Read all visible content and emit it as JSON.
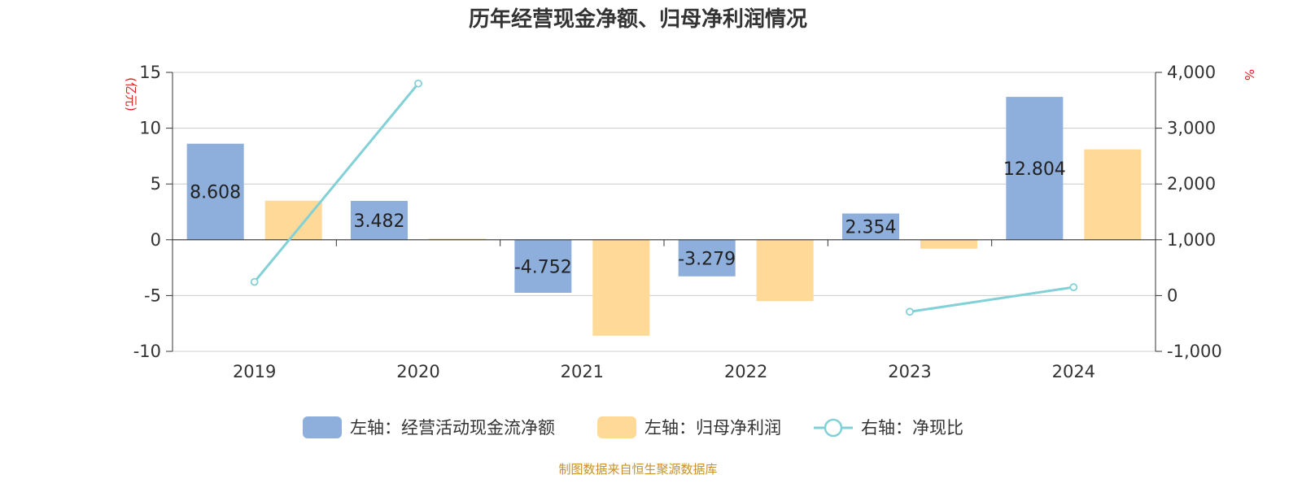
{
  "chart_data": {
    "type": "bar",
    "title": "历年经营现金净额、归母净利润情况",
    "categories": [
      "2019",
      "2020",
      "2021",
      "2022",
      "2023",
      "2024"
    ],
    "left_axis": {
      "unit": "(亿元)",
      "ylim": [
        -10,
        15
      ],
      "ticks": [
        "15",
        "10",
        "5",
        "0",
        "-5",
        "-10"
      ],
      "tick_values": [
        15,
        10,
        5,
        0,
        -5,
        -10
      ]
    },
    "right_axis": {
      "unit": "%",
      "ylim": [
        -1000,
        4000
      ],
      "ticks": [
        "4,000",
        "3,000",
        "2,000",
        "1,000",
        "0",
        "-1,000"
      ],
      "tick_values": [
        4000,
        3000,
        2000,
        1000,
        0,
        -1000
      ]
    },
    "series": [
      {
        "name": "左轴：经营活动现金流净额",
        "axis": "left",
        "kind": "bar",
        "color": "#8eaedb",
        "values": [
          8.608,
          3.482,
          -4.752,
          -3.279,
          2.354,
          12.804
        ],
        "labels": [
          "8.608",
          "3.482",
          "-4.752",
          "-3.279",
          "2.354",
          "12.804"
        ]
      },
      {
        "name": "左轴：归母净利润",
        "axis": "left",
        "kind": "bar",
        "color": "#fed998",
        "values": [
          3.5,
          0.1,
          -8.6,
          -5.5,
          -0.8,
          8.1
        ]
      },
      {
        "name": "右轴：净现比",
        "axis": "right",
        "kind": "line",
        "color": "#82d1d6",
        "values": [
          245,
          3800,
          null,
          null,
          -290,
          150
        ]
      }
    ],
    "grid": true,
    "legend": "bottom-center",
    "source": "制图数据来自恒生聚源数据库"
  }
}
